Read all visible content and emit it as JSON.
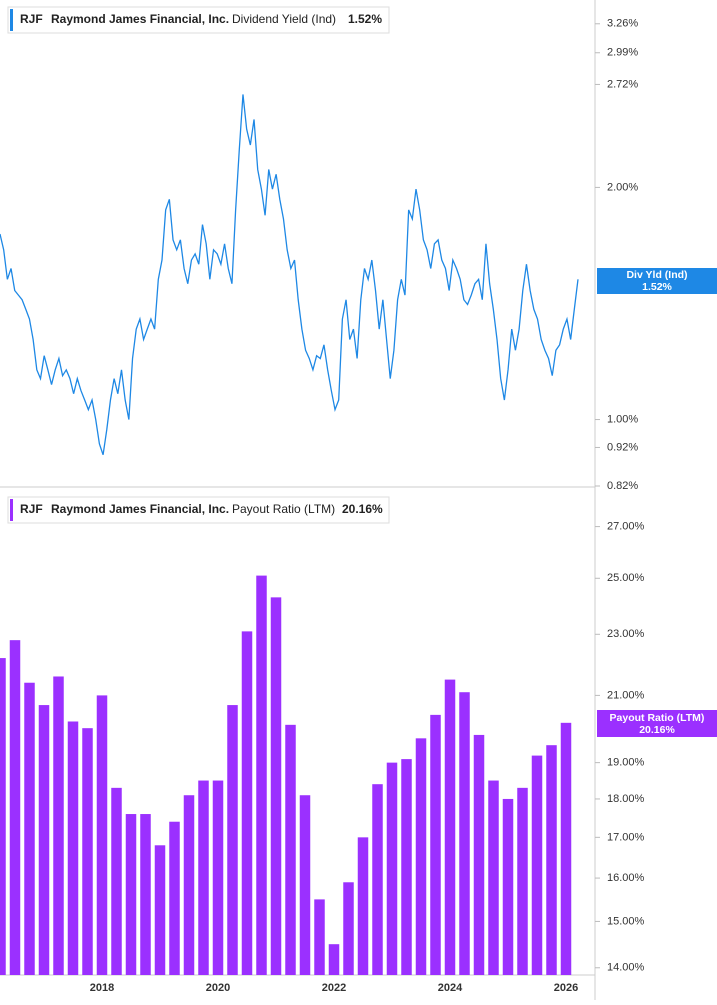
{
  "chart_data": [
    {
      "type": "line",
      "ticker": "RJF",
      "company": "Raymond James Financial, Inc.",
      "last_label": "1.52%",
      "flag_label": "Div Yld (Ind)",
      "log": true,
      "grid": false,
      "ylim": [
        0.82,
        3.5
      ],
      "yticks": [
        {
          "value": 3.26,
          "label": "3.26%"
        },
        {
          "value": 2.99,
          "label": "2.99%"
        },
        {
          "value": 2.72,
          "label": "2.72%"
        },
        {
          "value": 2.0,
          "label": "2.00%"
        },
        {
          "value": 1.0,
          "label": "1.00%"
        },
        {
          "value": 0.92,
          "label": "0.92%"
        },
        {
          "value": 0.82,
          "label": "0.82%"
        }
      ],
      "series": [
        {
          "name": "Dividend Yield (Ind)",
          "color": "#1e88e5",
          "values": [
            1.74,
            1.66,
            1.52,
            1.57,
            1.47,
            1.45,
            1.43,
            1.39,
            1.35,
            1.27,
            1.16,
            1.13,
            1.21,
            1.16,
            1.11,
            1.16,
            1.2,
            1.14,
            1.16,
            1.13,
            1.08,
            1.13,
            1.09,
            1.06,
            1.03,
            1.06,
            1.0,
            0.93,
            0.9,
            0.97,
            1.06,
            1.13,
            1.08,
            1.16,
            1.06,
            1.0,
            1.2,
            1.31,
            1.35,
            1.27,
            1.31,
            1.35,
            1.31,
            1.52,
            1.61,
            1.87,
            1.93,
            1.71,
            1.66,
            1.71,
            1.57,
            1.5,
            1.61,
            1.64,
            1.59,
            1.79,
            1.69,
            1.52,
            1.66,
            1.64,
            1.59,
            1.69,
            1.57,
            1.5,
            1.87,
            2.24,
            2.64,
            2.38,
            2.27,
            2.45,
            2.11,
            1.99,
            1.84,
            2.11,
            1.99,
            2.08,
            1.93,
            1.82,
            1.66,
            1.57,
            1.61,
            1.43,
            1.31,
            1.23,
            1.2,
            1.16,
            1.21,
            1.2,
            1.25,
            1.16,
            1.09,
            1.03,
            1.06,
            1.35,
            1.43,
            1.27,
            1.31,
            1.2,
            1.43,
            1.57,
            1.52,
            1.61,
            1.47,
            1.31,
            1.43,
            1.27,
            1.13,
            1.23,
            1.43,
            1.52,
            1.45,
            1.87,
            1.82,
            1.99,
            1.87,
            1.71,
            1.66,
            1.57,
            1.69,
            1.71,
            1.61,
            1.57,
            1.47,
            1.61,
            1.57,
            1.52,
            1.43,
            1.41,
            1.45,
            1.5,
            1.52,
            1.43,
            1.69,
            1.5,
            1.39,
            1.27,
            1.13,
            1.06,
            1.16,
            1.31,
            1.23,
            1.31,
            1.47,
            1.59,
            1.47,
            1.39,
            1.35,
            1.27,
            1.23,
            1.2,
            1.14,
            1.23,
            1.25,
            1.31,
            1.35,
            1.27,
            1.39,
            1.52
          ]
        }
      ]
    },
    {
      "type": "bar",
      "ticker": "RJF",
      "company": "Raymond James Financial, Inc.",
      "last_label": "20.16%",
      "flag_label": "Payout Ratio (LTM)",
      "log": true,
      "grid": false,
      "ylim": [
        13.85,
        28.3
      ],
      "yticks": [
        {
          "value": 27,
          "label": "27.00%"
        },
        {
          "value": 25,
          "label": "25.00%"
        },
        {
          "value": 23,
          "label": "23.00%"
        },
        {
          "value": 21,
          "label": "21.00%"
        },
        {
          "value": 19,
          "label": "19.00%"
        },
        {
          "value": 18,
          "label": "18.00%"
        },
        {
          "value": 17,
          "label": "17.00%"
        },
        {
          "value": 16,
          "label": "16.00%"
        },
        {
          "value": 15,
          "label": "15.00%"
        },
        {
          "value": 14,
          "label": "14.00%"
        }
      ],
      "categories": [
        null,
        null,
        null,
        null,
        null,
        null,
        null,
        "2018",
        null,
        null,
        null,
        null,
        null,
        null,
        null,
        "2020",
        null,
        null,
        null,
        null,
        null,
        null,
        null,
        "2022",
        null,
        null,
        null,
        null,
        null,
        null,
        null,
        "2024",
        null,
        null,
        null,
        null,
        null,
        null,
        null,
        "2026"
      ],
      "series": [
        {
          "name": "Payout Ratio (LTM)",
          "color": "#9b30ff",
          "values": [
            22.2,
            22.8,
            21.4,
            20.7,
            21.6,
            20.2,
            20.0,
            21.0,
            18.3,
            17.6,
            17.6,
            16.8,
            17.4,
            18.1,
            18.5,
            18.5,
            20.7,
            23.1,
            25.1,
            24.3,
            20.1,
            18.1,
            15.5,
            14.5,
            15.9,
            17.0,
            18.4,
            19.0,
            19.1,
            19.7,
            20.4,
            21.5,
            21.1,
            19.8,
            18.5,
            18.0,
            18.3,
            19.2,
            19.5,
            20.16
          ]
        }
      ]
    }
  ]
}
